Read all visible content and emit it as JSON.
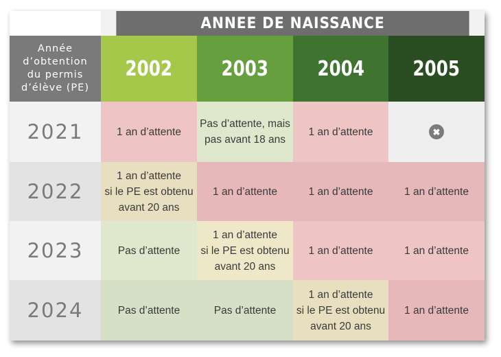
{
  "banner": "ANNEE DE NAISSANCE",
  "row_header_lines": [
    "Année",
    "d’obtention",
    "du permis",
    "d’élève (PE)"
  ],
  "columns": [
    {
      "label": "2002",
      "color": "#a5c84a"
    },
    {
      "label": "2003",
      "color": "#66a03e"
    },
    {
      "label": "2004",
      "color": "#3f7330"
    },
    {
      "label": "2005",
      "color": "#2a4d22"
    }
  ],
  "rows": [
    {
      "year": "2021",
      "cells": [
        {
          "text": "1 an d’attente",
          "status": "wait"
        },
        {
          "text": "Pas d’attente, mais\npas avant 18 ans",
          "status": "none"
        },
        {
          "text": "1 an d’attente",
          "status": "wait"
        },
        {
          "text": "",
          "status": "na",
          "icon": "close-icon"
        }
      ]
    },
    {
      "year": "2022",
      "cells": [
        {
          "text": "1 an d’attente\nsi le PE est obtenu\navant 20 ans",
          "status": "cond"
        },
        {
          "text": "1 an d’attente",
          "status": "wait"
        },
        {
          "text": "1 an d’attente",
          "status": "wait"
        },
        {
          "text": "1 an d’attente",
          "status": "wait"
        }
      ]
    },
    {
      "year": "2023",
      "cells": [
        {
          "text": "Pas d’attente",
          "status": "none"
        },
        {
          "text": "1 an d’attente\nsi le PE est obtenu\navant 20 ans",
          "status": "cond"
        },
        {
          "text": "1 an d’attente",
          "status": "wait"
        },
        {
          "text": "1 an d’attente",
          "status": "wait"
        }
      ]
    },
    {
      "year": "2024",
      "cells": [
        {
          "text": "Pas d’attente",
          "status": "none"
        },
        {
          "text": "Pas d’attente",
          "status": "none"
        },
        {
          "text": "1 an d’attente\nsi le PE est obtenu\navant 20 ans",
          "status": "cond"
        },
        {
          "text": "1 an d’attente",
          "status": "wait"
        }
      ]
    }
  ],
  "status_colors": {
    "wait_light": "#efc4c4",
    "wait_dark": "#e6b8b9",
    "none_light": "#dfe8cc",
    "none_dark": "#d6e0c6",
    "cond_light": "#efe8c8",
    "cond_dark": "#e7dfbf",
    "na": "#efefef"
  }
}
